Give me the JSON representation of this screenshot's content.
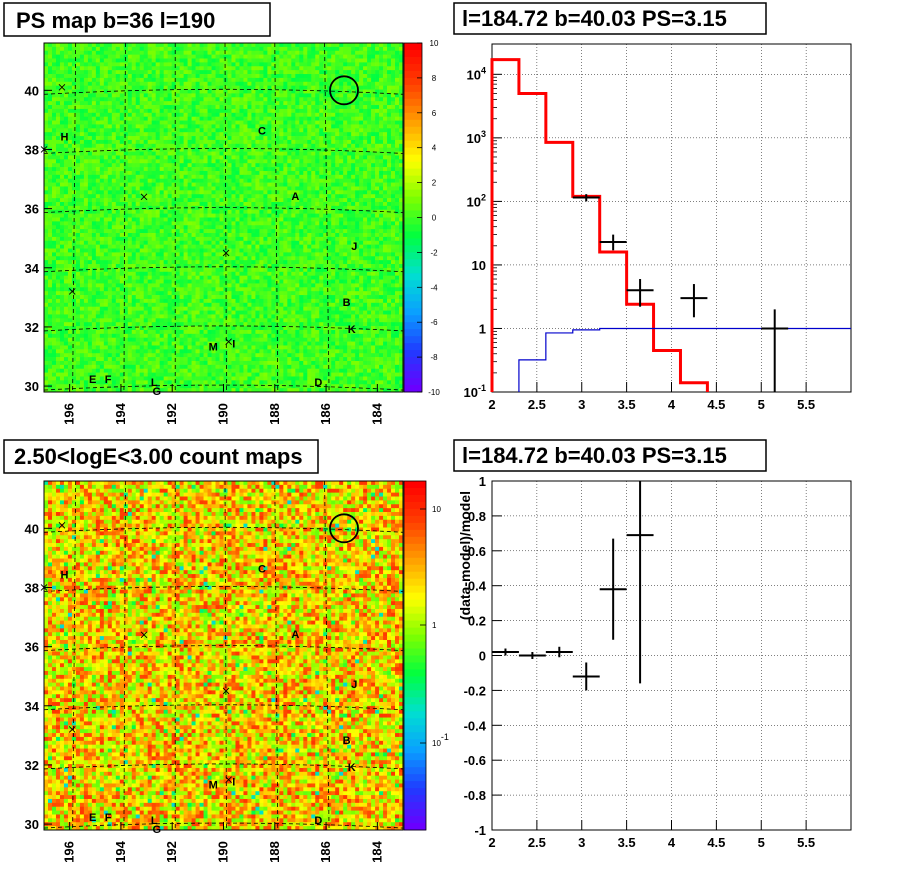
{
  "panels": {
    "top_left_title": "PS map b=36 l=190",
    "top_right_title": "l=184.72 b=40.03 PS=3.15",
    "bottom_left_title": "2.50<logE<3.00 count maps",
    "bottom_right_title": "l=184.72 b=40.03 PS=3.15"
  },
  "colors": {
    "red_line": "#ff0000",
    "blue_line": "#0000cc",
    "data_points": "#000000"
  },
  "chart_data": [
    {
      "type": "heatmap",
      "title": "PS map b=36 l=190",
      "x_ticks": [
        "196",
        "194",
        "192",
        "190",
        "188",
        "186",
        "184"
      ],
      "y_ticks": [
        "30",
        "32",
        "34",
        "36",
        "38",
        "40"
      ],
      "xlim": [
        197,
        183
      ],
      "ylim": [
        29.8,
        41.6
      ],
      "colorbar_ticks": [
        "10",
        "8",
        "6",
        "4",
        "2",
        "0",
        "-2",
        "-4",
        "-6",
        "-8",
        "-10"
      ],
      "zlim": [
        -10,
        10
      ],
      "source_labels": [
        "A",
        "B",
        "C",
        "D",
        "E",
        "F",
        "G",
        "H",
        "I",
        "J",
        "K",
        "L",
        "M"
      ]
    },
    {
      "type": "line",
      "title": "l=184.72 b=40.03 PS=3.15",
      "log_y": true,
      "xlim": [
        2,
        6
      ],
      "ylim": [
        0.1,
        30000
      ],
      "x_ticks": [
        "2",
        "2.5",
        "3",
        "3.5",
        "4",
        "4.5",
        "5",
        "5.5"
      ],
      "y_ticks": [
        "10^-1",
        "1",
        "10",
        "10^2",
        "10^3",
        "10^4"
      ],
      "grid": true,
      "series": [
        {
          "style": "step",
          "color": "#ff0000",
          "edges": [
            2.0,
            2.3,
            2.6,
            2.9,
            3.2,
            3.5,
            3.8,
            4.1,
            4.4
          ],
          "values": [
            17000,
            5000,
            850,
            120,
            16,
            2.4,
            0.45,
            0.14,
            0.1
          ]
        },
        {
          "style": "step",
          "color": "#0000cc",
          "edges": [
            2.3,
            2.6,
            2.9,
            3.2,
            6.0
          ],
          "values": [
            0.32,
            0.85,
            0.95,
            1.0
          ]
        },
        {
          "style": "points",
          "color": "#000000",
          "points": [
            {
              "x": 3.05,
              "y": 115,
              "xerr": 0.15,
              "ylo": 100,
              "yhi": 130
            },
            {
              "x": 3.35,
              "y": 23,
              "xerr": 0.15,
              "ylo": 17,
              "yhi": 30
            },
            {
              "x": 3.65,
              "y": 4,
              "xerr": 0.15,
              "ylo": 2.2,
              "yhi": 6
            },
            {
              "x": 4.25,
              "y": 3,
              "xerr": 0.15,
              "ylo": 1.5,
              "yhi": 5
            },
            {
              "x": 5.15,
              "y": 1,
              "xerr": 0.15,
              "ylo": 0.1,
              "yhi": 2
            }
          ]
        }
      ]
    },
    {
      "type": "heatmap",
      "title": "2.50<logE<3.00 count maps",
      "x_ticks": [
        "196",
        "194",
        "192",
        "190",
        "188",
        "186",
        "184"
      ],
      "y_ticks": [
        "30",
        "32",
        "34",
        "36",
        "38",
        "40"
      ],
      "xlim": [
        197,
        183
      ],
      "ylim": [
        29.8,
        41.6
      ],
      "colorbar_ticks": [
        "10",
        "1",
        "10^-1"
      ],
      "log_z": true,
      "source_labels": [
        "A",
        "B",
        "C",
        "D",
        "E",
        "F",
        "G",
        "H",
        "I",
        "J",
        "K",
        "L",
        "M"
      ]
    },
    {
      "type": "scatter",
      "title": "l=184.72 b=40.03 PS=3.15",
      "ylabel": "(data-model)/model",
      "xlim": [
        2,
        6
      ],
      "ylim": [
        -1,
        1
      ],
      "x_ticks": [
        "2",
        "2.5",
        "3",
        "3.5",
        "4",
        "4.5",
        "5",
        "5.5"
      ],
      "y_ticks": [
        "-1",
        "-0.8",
        "-0.6",
        "-0.4",
        "-0.2",
        "0",
        "0.2",
        "0.4",
        "0.6",
        "0.8",
        "1"
      ],
      "grid": true,
      "points": [
        {
          "x": 2.15,
          "y": 0.02,
          "xerr": 0.15,
          "ylo": 0.0,
          "yhi": 0.04
        },
        {
          "x": 2.45,
          "y": 0.0,
          "xerr": 0.15,
          "ylo": -0.02,
          "yhi": 0.02
        },
        {
          "x": 2.75,
          "y": 0.02,
          "xerr": 0.15,
          "ylo": -0.01,
          "yhi": 0.05
        },
        {
          "x": 3.05,
          "y": -0.12,
          "xerr": 0.15,
          "ylo": -0.2,
          "yhi": -0.04
        },
        {
          "x": 3.35,
          "y": 0.38,
          "xerr": 0.15,
          "ylo": 0.09,
          "yhi": 0.67
        },
        {
          "x": 3.65,
          "y": 0.69,
          "xerr": 0.15,
          "ylo": -0.16,
          "yhi": 1.0
        }
      ]
    }
  ]
}
